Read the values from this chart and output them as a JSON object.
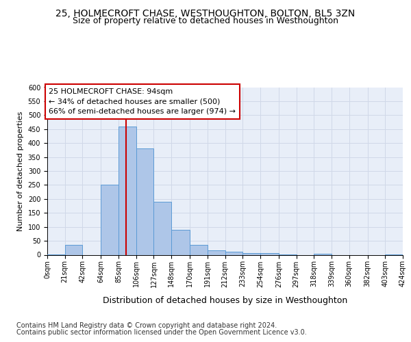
{
  "title1": "25, HOLMECROFT CHASE, WESTHOUGHTON, BOLTON, BL5 3ZN",
  "title2": "Size of property relative to detached houses in Westhoughton",
  "xlabel": "Distribution of detached houses by size in Westhoughton",
  "ylabel": "Number of detached properties",
  "footnote1": "Contains HM Land Registry data © Crown copyright and database right 2024.",
  "footnote2": "Contains public sector information licensed under the Open Government Licence v3.0.",
  "annotation_line1": "25 HOLMECROFT CHASE: 94sqm",
  "annotation_line2": "← 34% of detached houses are smaller (500)",
  "annotation_line3": "66% of semi-detached houses are larger (974) →",
  "property_size": 94,
  "bar_edges": [
    0,
    21,
    42,
    64,
    85,
    106,
    127,
    148,
    170,
    191,
    212,
    233,
    254,
    276,
    297,
    318,
    339,
    360,
    382,
    403,
    424
  ],
  "bar_heights": [
    2,
    35,
    0,
    250,
    460,
    380,
    190,
    90,
    35,
    17,
    10,
    5,
    5,
    2,
    0,
    3,
    0,
    0,
    0,
    2
  ],
  "tick_labels": [
    "0sqm",
    "21sqm",
    "42sqm",
    "64sqm",
    "85sqm",
    "106sqm",
    "127sqm",
    "148sqm",
    "170sqm",
    "191sqm",
    "212sqm",
    "233sqm",
    "254sqm",
    "276sqm",
    "297sqm",
    "318sqm",
    "339sqm",
    "360sqm",
    "382sqm",
    "403sqm",
    "424sqm"
  ],
  "bar_color": "#aec6e8",
  "bar_edge_color": "#5b9bd5",
  "vline_color": "#cc0000",
  "vline_x": 94,
  "ylim": [
    0,
    600
  ],
  "yticks": [
    0,
    50,
    100,
    150,
    200,
    250,
    300,
    350,
    400,
    450,
    500,
    550,
    600
  ],
  "grid_color": "#d0d8e8",
  "bg_color": "#e8eef8",
  "annotation_box_color": "#cc0000",
  "title1_fontsize": 10,
  "title2_fontsize": 9,
  "xlabel_fontsize": 9,
  "ylabel_fontsize": 8,
  "tick_fontsize": 7,
  "footnote_fontsize": 7,
  "annot_fontsize": 8
}
